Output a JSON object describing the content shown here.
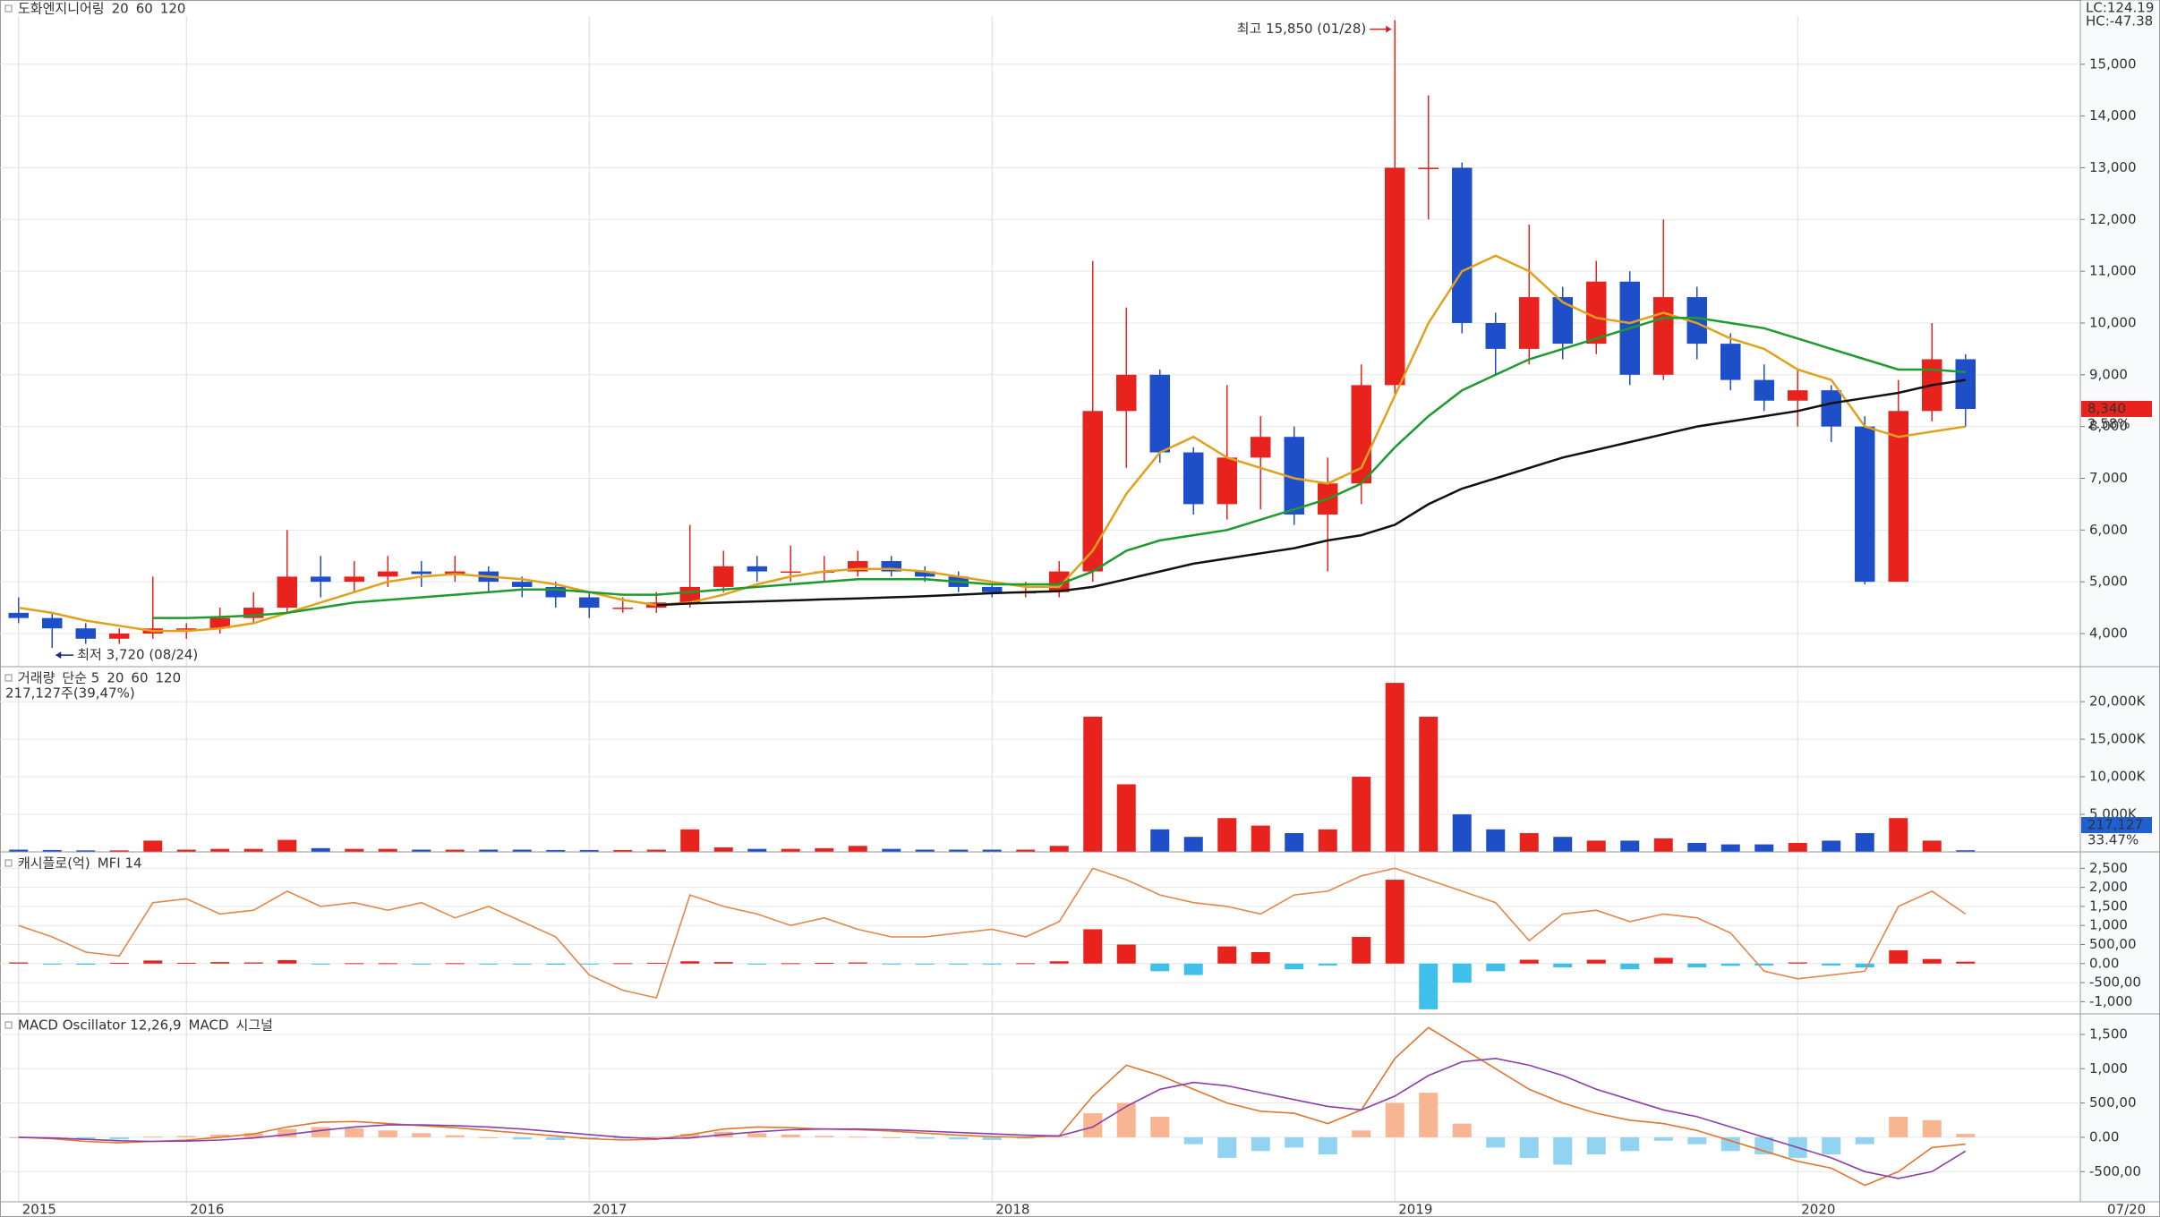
{
  "chart_data": [
    {
      "type": "candlestick",
      "title": "도화엔지니어링",
      "categories": [
        "2015",
        null,
        null,
        null,
        null,
        "2016",
        null,
        null,
        null,
        null,
        null,
        null,
        null,
        null,
        null,
        null,
        null,
        "2017",
        null,
        null,
        null,
        null,
        null,
        null,
        null,
        null,
        null,
        null,
        null,
        "2018",
        null,
        null,
        null,
        null,
        null,
        null,
        null,
        null,
        null,
        null,
        null,
        "2019",
        null,
        null,
        null,
        null,
        null,
        null,
        null,
        null,
        null,
        null,
        null,
        "2020",
        null,
        null,
        null,
        null,
        null
      ],
      "open": [
        4400,
        4300,
        4100,
        3900,
        4000,
        4100,
        4100,
        4300,
        4500,
        5100,
        5000,
        5100,
        5200,
        5150,
        5200,
        5000,
        4900,
        4700,
        4500,
        4500,
        4600,
        4900,
        5300,
        5200,
        5200,
        5200,
        5400,
        5200,
        5100,
        4900,
        4800,
        4800,
        5200,
        8300,
        9000,
        7500,
        6500,
        7400,
        7800,
        6300,
        6900,
        8800,
        13000,
        13000,
        10000,
        9500,
        10500,
        9600,
        10800,
        9000,
        10500,
        9600,
        8900,
        8500,
        8700,
        8000,
        5000,
        8300,
        9300
      ],
      "high": [
        4700,
        4400,
        4200,
        4100,
        5100,
        4200,
        4500,
        4800,
        6000,
        5500,
        5400,
        5500,
        5400,
        5500,
        5300,
        5100,
        5000,
        4800,
        4700,
        4800,
        6100,
        5600,
        5500,
        5700,
        5500,
        5600,
        5500,
        5300,
        5200,
        5000,
        5000,
        5400,
        11200,
        10300,
        9100,
        7600,
        8800,
        8200,
        8000,
        7400,
        9200,
        15850,
        14400,
        13100,
        10200,
        11900,
        10700,
        11200,
        11000,
        12000,
        10700,
        9800,
        9200,
        9100,
        8800,
        8200,
        8900,
        10000,
        9400
      ],
      "low": [
        4200,
        3720,
        3800,
        3800,
        3900,
        3900,
        4000,
        4200,
        4400,
        4700,
        4800,
        4900,
        4900,
        5000,
        4800,
        4700,
        4500,
        4300,
        4400,
        4400,
        4500,
        4800,
        5000,
        5000,
        5000,
        5100,
        5100,
        5000,
        4800,
        4700,
        4700,
        4700,
        5000,
        7200,
        7300,
        6300,
        6200,
        6400,
        6100,
        5200,
        6500,
        8600,
        12000,
        9800,
        9000,
        9200,
        9300,
        9400,
        8800,
        8900,
        9300,
        8700,
        8300,
        8000,
        7700,
        4950,
        5000,
        8100,
        8000
      ],
      "close": [
        4300,
        4100,
        3900,
        4000,
        4100,
        4100,
        4300,
        4500,
        5100,
        5000,
        5100,
        5200,
        5150,
        5200,
        5000,
        4900,
        4700,
        4500,
        4500,
        4600,
        4900,
        5300,
        5200,
        5200,
        5200,
        5400,
        5200,
        5100,
        4900,
        4800,
        4800,
        5200,
        8300,
        9000,
        7500,
        6500,
        7400,
        7800,
        6300,
        6900,
        8800,
        13000,
        13000,
        10000,
        9500,
        10500,
        9600,
        10800,
        9000,
        10500,
        9600,
        8900,
        8500,
        8700,
        8000,
        5000,
        8300,
        9300,
        8340
      ],
      "up_color": "#e8231e",
      "down_color": "#1f4fc8",
      "series": [
        {
          "name": "20",
          "type": "line",
          "color": "#e0a21c",
          "values": [
            4500,
            4400,
            4250,
            4150,
            4050,
            4050,
            4100,
            4200,
            4400,
            4600,
            4800,
            5000,
            5100,
            5150,
            5100,
            5050,
            4950,
            4800,
            4650,
            4550,
            4600,
            4750,
            4950,
            5100,
            5200,
            5250,
            5250,
            5200,
            5100,
            5000,
            4900,
            4900,
            5600,
            6700,
            7500,
            7800,
            7400,
            7200,
            7000,
            6900,
            7200,
            8600,
            10000,
            11000,
            11300,
            11000,
            10400,
            10100,
            10000,
            10200,
            10000,
            9700,
            9500,
            9100,
            8900,
            8000,
            7800,
            7900,
            8000
          ]
        },
        {
          "name": "60",
          "type": "line",
          "color": "#1f9a2e",
          "values": [
            null,
            null,
            null,
            null,
            4300,
            4300,
            4320,
            4350,
            4400,
            4500,
            4600,
            4650,
            4700,
            4750,
            4800,
            4850,
            4850,
            4800,
            4750,
            4750,
            4800,
            4850,
            4900,
            4950,
            5000,
            5050,
            5050,
            5050,
            5000,
            4950,
            4950,
            4950,
            5200,
            5600,
            5800,
            5900,
            6000,
            6200,
            6400,
            6600,
            6900,
            7600,
            8200,
            8700,
            9000,
            9300,
            9500,
            9700,
            9900,
            10100,
            10100,
            10000,
            9900,
            9700,
            9500,
            9300,
            9100,
            9100,
            9050
          ]
        },
        {
          "name": "120",
          "type": "line",
          "color": "#111111",
          "values": [
            null,
            null,
            null,
            null,
            null,
            null,
            null,
            null,
            null,
            null,
            null,
            null,
            null,
            null,
            null,
            null,
            null,
            null,
            null,
            4550,
            4580,
            4600,
            4620,
            4640,
            4660,
            4680,
            4700,
            4720,
            4750,
            4780,
            4800,
            4820,
            4900,
            5050,
            5200,
            5350,
            5450,
            5550,
            5650,
            5800,
            5900,
            6100,
            6500,
            6800,
            7000,
            7200,
            7400,
            7550,
            7700,
            7850,
            8000,
            8100,
            8200,
            8300,
            8450,
            8550,
            8650,
            8800,
            8900
          ]
        }
      ],
      "ylim": [
        3360,
        15930
      ],
      "yticks": [
        {
          "value": 4000,
          "label": "4,000"
        },
        {
          "value": 5000,
          "label": "5,000"
        },
        {
          "value": 6000,
          "label": "6,000"
        },
        {
          "value": 7000,
          "label": "7,000"
        },
        {
          "value": 8000,
          "label": "8,000"
        },
        {
          "value": 9000,
          "label": "9,000"
        },
        {
          "value": 10000,
          "label": "10,000"
        },
        {
          "value": 11000,
          "label": "11,000"
        },
        {
          "value": 12000,
          "label": "12,000"
        },
        {
          "value": 13000,
          "label": "13,000"
        },
        {
          "value": 14000,
          "label": "14,000"
        },
        {
          "value": 15000,
          "label": "15,000"
        }
      ],
      "grid": true,
      "high_label": "최고 15,850 (01/28)",
      "low_label": "최저 3,720 (08/24)",
      "corner_labels": [
        "LC:124.19",
        "HC:-47.38"
      ],
      "last_label": "8,340",
      "last_change": "2.58%",
      "x_end_label": "07/20"
    },
    {
      "type": "bar",
      "subtitle": "217,127주(39,47%)",
      "series": [
        {
          "name": "거래량",
          "type": "bar",
          "up_color": "#e8231e",
          "down_color": "#1f4fc8",
          "values": [
            300,
            250,
            200,
            200,
            1500,
            300,
            400,
            400,
            1600,
            500,
            400,
            400,
            300,
            300,
            300,
            300,
            250,
            250,
            250,
            300,
            3000,
            600,
            400,
            400,
            500,
            800,
            400,
            300,
            300,
            300,
            300,
            800,
            18000,
            9000,
            3000,
            2000,
            4500,
            3500,
            2500,
            3000,
            10000,
            22500,
            18000,
            5000,
            3000,
            2500,
            2000,
            1500,
            1500,
            1800,
            1200,
            1000,
            1000,
            1200,
            1500,
            2500,
            4500,
            1500,
            217
          ]
        }
      ],
      "legend": [
        {
          "label": "단순 5",
          "color": "#b040c0"
        },
        {
          "label": "20",
          "color": "#e0a21c"
        },
        {
          "label": "60",
          "color": "#1f9a2e"
        },
        {
          "label": "120",
          "color": "#777777"
        }
      ],
      "ylim": [
        0,
        24300
      ],
      "yticks": [
        {
          "value": 5000,
          "label": "5,000K"
        },
        {
          "value": 10000,
          "label": "10,000K"
        },
        {
          "value": 15000,
          "label": "15,000K"
        },
        {
          "value": 20000,
          "label": "20,000K"
        }
      ],
      "grid": true,
      "last_label": "217,127",
      "last_change": "33.47%"
    },
    {
      "type": "bar",
      "series": [
        {
          "name": "캐시플로(억)",
          "type": "bar",
          "pos_color": "#e8231e",
          "neg_color": "#3fc0ea",
          "values": [
            30,
            -20,
            -30,
            20,
            80,
            20,
            40,
            30,
            90,
            -20,
            10,
            10,
            -10,
            10,
            -20,
            -10,
            -30,
            -20,
            10,
            20,
            60,
            40,
            -10,
            10,
            20,
            30,
            -20,
            -10,
            -20,
            -10,
            10,
            60,
            900,
            500,
            -200,
            -300,
            450,
            300,
            -150,
            -50,
            700,
            2200,
            -1200,
            -500,
            -200,
            100,
            -100,
            100,
            -150,
            150,
            -100,
            -60,
            -50,
            30,
            -50,
            -100,
            350,
            120,
            50
          ]
        },
        {
          "name": "MFI 14",
          "type": "line",
          "color": "#e3864a",
          "values": [
            1000,
            700,
            300,
            200,
            1600,
            1700,
            1300,
            1400,
            1900,
            1500,
            1600,
            1400,
            1600,
            1200,
            1500,
            1100,
            700,
            -300,
            -700,
            -900,
            1800,
            1500,
            1300,
            1000,
            1200,
            900,
            700,
            700,
            800,
            900,
            700,
            1100,
            2500,
            2200,
            1800,
            1600,
            1500,
            1300,
            1800,
            1900,
            2300,
            2500,
            2200,
            1900,
            1600,
            600,
            1300,
            1400,
            1100,
            1300,
            1200,
            800,
            -200,
            -400,
            -300,
            -200,
            1500,
            1900,
            1300
          ]
        }
      ],
      "ylim": [
        -1320,
        2860
      ],
      "yticks": [
        {
          "value": 2500,
          "label": "2,500"
        },
        {
          "value": 2000,
          "label": "2,000"
        },
        {
          "value": 1500,
          "label": "1,500"
        },
        {
          "value": 1000,
          "label": "1,000"
        },
        {
          "value": 500,
          "label": "500,00"
        },
        {
          "value": 0,
          "label": "0.00"
        },
        {
          "value": -500,
          "label": "-500,00"
        },
        {
          "value": -1000,
          "label": "-1,000"
        }
      ],
      "grid": true
    },
    {
      "type": "bar",
      "series": [
        {
          "name": "MACD Oscillator 12,26,9",
          "type": "bar",
          "pos_color": "#f7b591",
          "neg_color": "#93d3f2",
          "values": [
            0,
            -20,
            -40,
            -30,
            10,
            20,
            40,
            60,
            120,
            150,
            130,
            100,
            60,
            30,
            0,
            -30,
            -40,
            -30,
            -20,
            10,
            50,
            80,
            60,
            40,
            20,
            10,
            0,
            -20,
            -30,
            -40,
            -20,
            10,
            350,
            500,
            300,
            -100,
            -300,
            -200,
            -150,
            -250,
            100,
            500,
            650,
            200,
            -150,
            -300,
            -400,
            -250,
            -200,
            -50,
            -100,
            -200,
            -250,
            -300,
            -250,
            -100,
            300,
            250,
            50
          ]
        },
        {
          "name": "MACD",
          "type": "line",
          "color": "#e0762e",
          "values": [
            0,
            -20,
            -60,
            -80,
            -60,
            -40,
            0,
            50,
            150,
            220,
            230,
            200,
            170,
            140,
            100,
            60,
            20,
            -20,
            -40,
            -30,
            40,
            120,
            150,
            140,
            120,
            110,
            90,
            60,
            30,
            10,
            0,
            20,
            600,
            1050,
            900,
            700,
            500,
            380,
            350,
            200,
            400,
            1150,
            1600,
            1300,
            1000,
            700,
            500,
            350,
            250,
            200,
            100,
            -50,
            -200,
            -350,
            -450,
            -700,
            -500,
            -150,
            -100
          ]
        },
        {
          "name": "시그널",
          "type": "line",
          "color": "#8a3fa6",
          "values": [
            0,
            -10,
            -30,
            -50,
            -60,
            -55,
            -40,
            -10,
            40,
            100,
            150,
            180,
            180,
            170,
            150,
            120,
            80,
            40,
            0,
            -20,
            -10,
            40,
            80,
            110,
            120,
            120,
            110,
            90,
            70,
            50,
            30,
            20,
            150,
            450,
            700,
            800,
            750,
            650,
            550,
            450,
            400,
            600,
            900,
            1100,
            1150,
            1050,
            900,
            700,
            550,
            400,
            300,
            150,
            0,
            -150,
            -300,
            -500,
            -600,
            -500,
            -200
          ]
        }
      ],
      "ylim": [
        -940,
        1760
      ],
      "yticks": [
        {
          "value": 1500,
          "label": "1,500"
        },
        {
          "value": 1000,
          "label": "1,000"
        },
        {
          "value": 500,
          "label": "500,00"
        },
        {
          "value": 0,
          "label": "0.00"
        },
        {
          "value": -500,
          "label": "-500,00"
        }
      ],
      "grid": true
    }
  ]
}
